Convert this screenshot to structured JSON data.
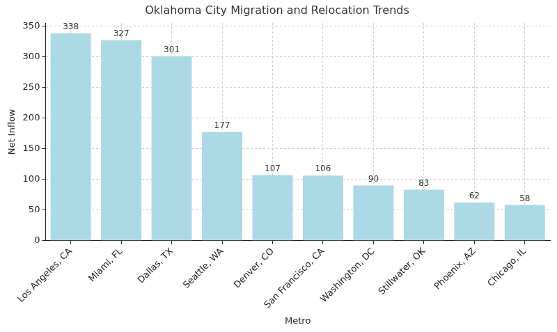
{
  "chart_data": {
    "type": "bar",
    "title": "Oklahoma City Migration and Relocation Trends",
    "x_label": "Metro",
    "y_label": "Net Inflow",
    "categories": [
      "Los Angeles, CA",
      "Miami, FL",
      "Dallas, TX",
      "Seattle, WA",
      "Denver, CO",
      "San Francisco, CA",
      "Washington, DC",
      "Stillwater, OK",
      "Phoenix, AZ",
      "Chicago, IL"
    ],
    "values": [
      338,
      327,
      301,
      177,
      107,
      106,
      90,
      83,
      62,
      58
    ],
    "color": "#add8e6",
    "ylim": [
      0,
      354.9
    ],
    "yticks": [
      0,
      50,
      100,
      150,
      200,
      250,
      300,
      350
    ],
    "grid": true,
    "data_labels": true
  }
}
